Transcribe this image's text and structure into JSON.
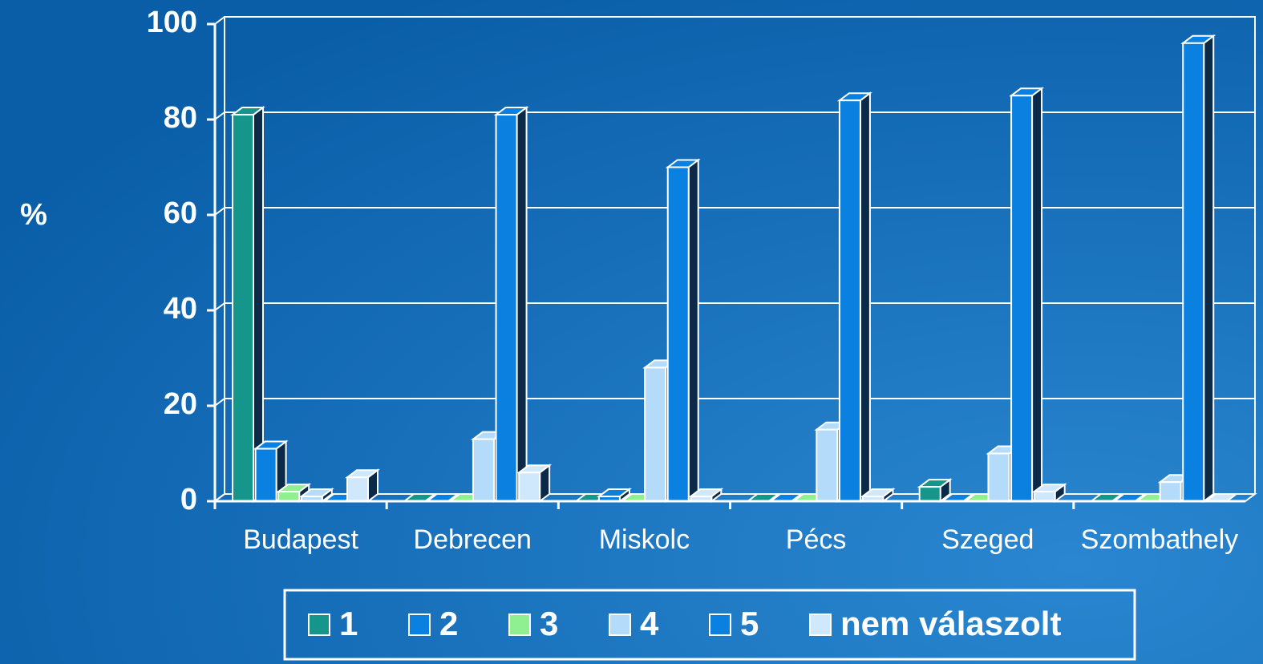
{
  "chart_data": {
    "type": "bar3d",
    "y_label": "%",
    "categories": [
      "Budapest",
      "Debrecen",
      "Miskolc",
      "Pécs",
      "Szeged",
      "Szombathely"
    ],
    "series": [
      {
        "name": "1",
        "color": "#14968a",
        "values": [
          81,
          0,
          0,
          0,
          3,
          0
        ]
      },
      {
        "name": "2",
        "color": "#0a80e0",
        "values": [
          11,
          0,
          1,
          0,
          0,
          0
        ]
      },
      {
        "name": "3",
        "color": "#8ef08e",
        "values": [
          2,
          0,
          0,
          0,
          0,
          0
        ]
      },
      {
        "name": "4",
        "color": "#b4dcfa",
        "values": [
          1,
          13,
          28,
          15,
          10,
          4
        ]
      },
      {
        "name": "5",
        "color": "#0a80e0",
        "values": [
          0,
          81,
          70,
          84,
          85,
          96
        ]
      },
      {
        "name": "nem válaszolt",
        "color": "#cfe8fc",
        "values": [
          5,
          6,
          1,
          1,
          2,
          0
        ]
      }
    ],
    "ylim": [
      0,
      100
    ],
    "yticks": [
      0,
      20,
      40,
      60,
      80,
      100
    ],
    "grid": true
  }
}
